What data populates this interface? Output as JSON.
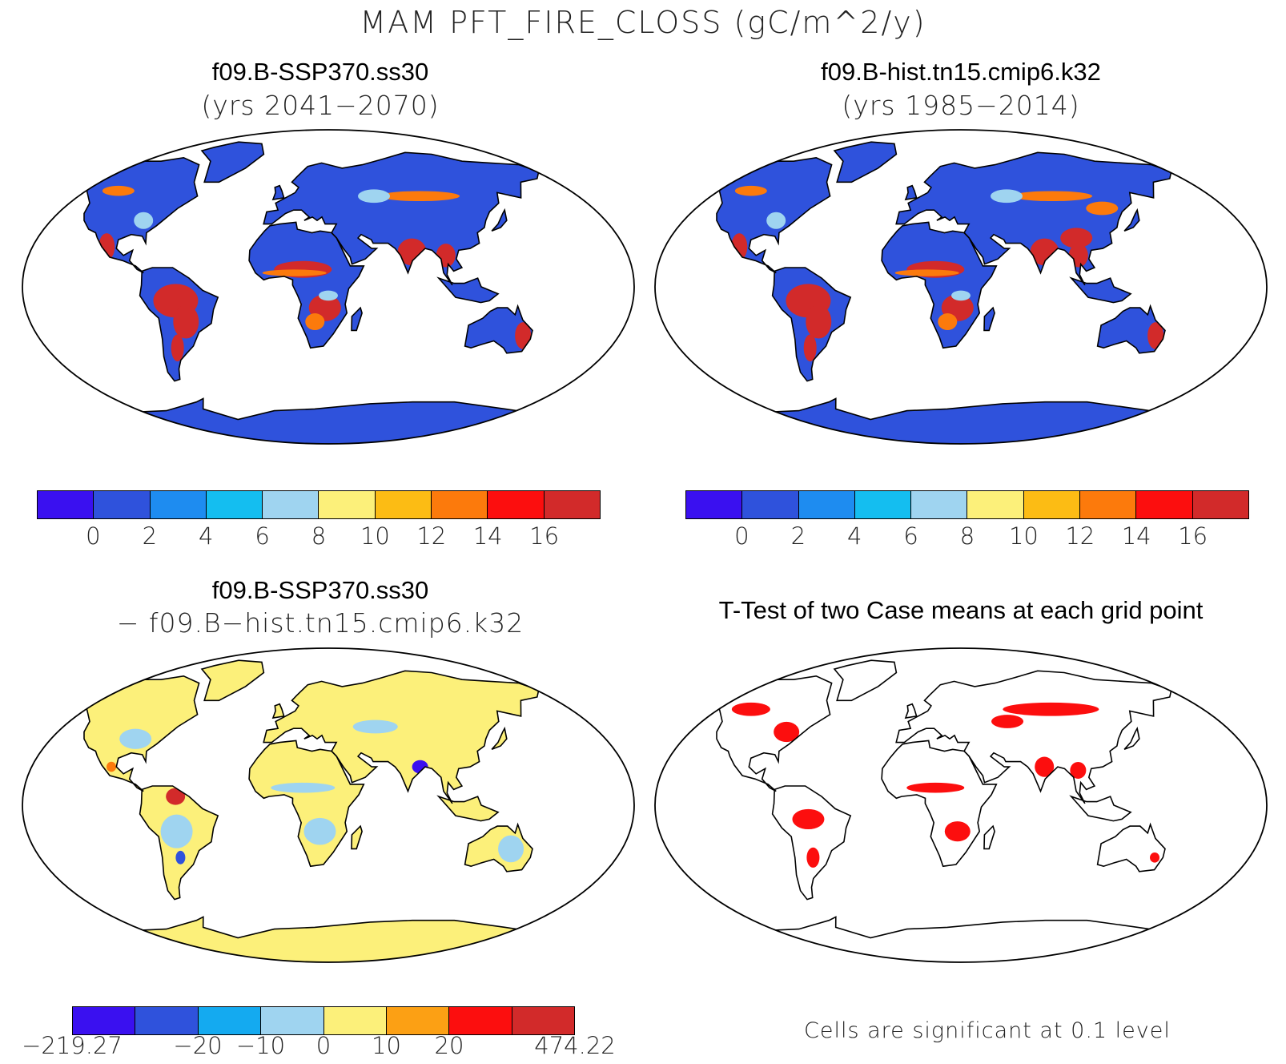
{
  "title": "MAM PFT_FIRE_CLOSS (gC/m^2/y)",
  "panels": [
    {
      "title": "f09.B-SSP370.ss30",
      "subtitle": "(yrs 2041−2070)"
    },
    {
      "title": "f09.B-hist.tn15.cmip6.k32",
      "subtitle": "(yrs 1985−2014)"
    },
    {
      "title": "f09.B-SSP370.ss30",
      "subtitle": "− f09.B−hist.tn15.cmip6.k32"
    },
    {
      "title": "T-Test of two Case means at each grid point",
      "subtitle": ""
    }
  ],
  "colorbar_main": {
    "colors": [
      "#3a10f0",
      "#2f52dc",
      "#1e8cf0",
      "#14bef0",
      "#9fd4f0",
      "#fcf07a",
      "#fcbc14",
      "#fc7a0c",
      "#fc0e0e",
      "#d22a2a"
    ],
    "labels": [
      "0",
      "2",
      "4",
      "6",
      "8",
      "10",
      "12",
      "14",
      "16"
    ]
  },
  "colorbar_diff": {
    "colors": [
      "#3a10f0",
      "#2f52dc",
      "#14aaf0",
      "#9fd4f0",
      "#fcf07a",
      "#fca014",
      "#fc0e0e",
      "#d22a2a"
    ],
    "labels": [
      "−219.27",
      "−20",
      "−10",
      "0",
      "10",
      "20",
      "474.22"
    ]
  },
  "note": "Cells are significant at 0.1 level",
  "map_colors": {
    "ocean": "#ffffff",
    "panel1_land": "#2f52dc",
    "panel2_land": "#2f52dc",
    "panel3_land": "#fcf07a",
    "panel4_land": "#ffffff",
    "hot": "#d22a2a",
    "warm": "#fc7a0c",
    "signif": "#fc0e0e",
    "cool": "#9fd4f0"
  }
}
